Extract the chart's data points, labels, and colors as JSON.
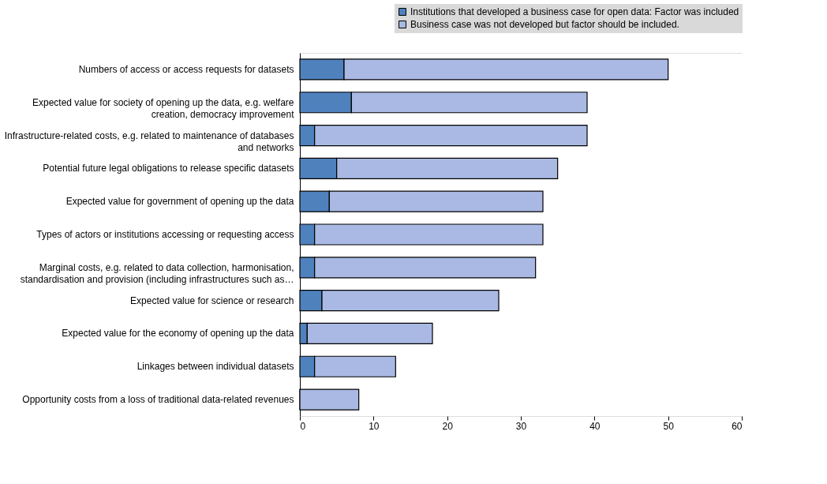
{
  "chart_data": {
    "type": "bar",
    "orientation": "horizontal",
    "stacked": true,
    "categories": [
      "Numbers of access or access requests for datasets",
      "Expected value for society of opening up the data, e.g. welfare creation, democracy improvement",
      "Infrastructure-related costs, e.g. related to maintenance of databases and networks",
      "Potential future legal obligations to release specific datasets",
      "Expected value for government of opening up the data",
      "Types of actors or institutions accessing or requesting access",
      "Marginal costs, e.g. related to data collection, harmonisation, standardisation and provision (including infrastructures such as…",
      "Expected value for science or research",
      "Expected value for the economy of opening up the data",
      "Linkages between individual datasets",
      "Opportunity costs from a loss of traditional data-related revenues"
    ],
    "series": [
      {
        "name": "Institutions that developed a business case for open data: Factor was included",
        "color": "#4f81bd",
        "values": [
          6,
          7,
          2,
          5,
          4,
          2,
          2,
          3,
          1,
          2,
          0
        ]
      },
      {
        "name": "Business case was not developed but factor should be included.",
        "color": "#a9b9e3",
        "values": [
          44,
          32,
          37,
          30,
          29,
          31,
          30,
          24,
          17,
          11,
          8
        ]
      }
    ],
    "xlim": [
      0,
      60
    ],
    "xticks": [
      0,
      10,
      20,
      30,
      40,
      50,
      60
    ],
    "grid": "x",
    "legend": "top right"
  }
}
